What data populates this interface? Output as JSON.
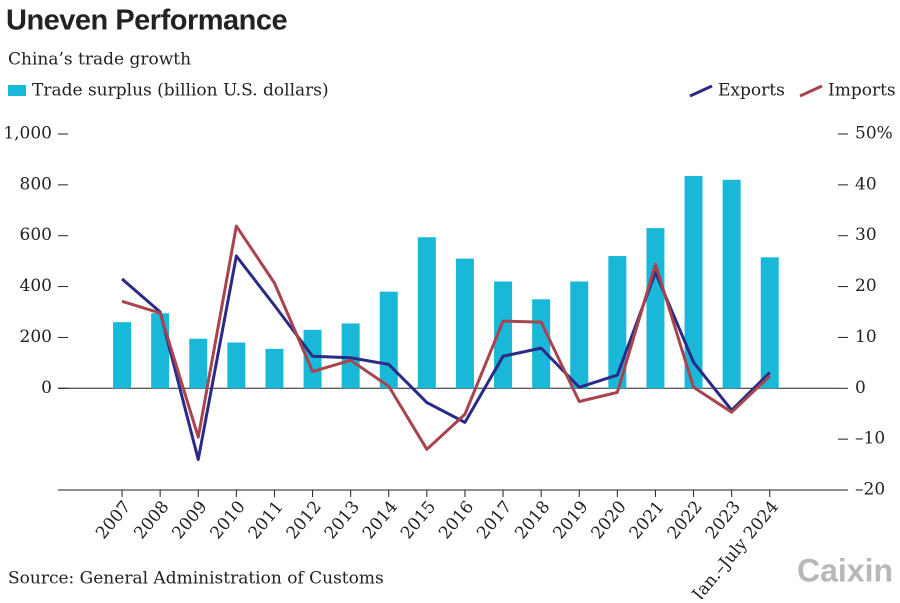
{
  "chart_data": {
    "type": "bar",
    "title": "Uneven Performance",
    "subtitle": "China’s trade growth",
    "source": "Source: General Administration of Customs",
    "brand": "Caixin",
    "categories": [
      "2007",
      "2008",
      "2009",
      "2010",
      "2011",
      "2012",
      "2013",
      "2014",
      "2015",
      "2016",
      "2017",
      "2018",
      "2019",
      "2020",
      "2021",
      "2022",
      "2023",
      "Jan.–July 2024"
    ],
    "series": [
      {
        "name": "Trade surplus (billion U.S. dollars)",
        "type": "bar",
        "axis": "y",
        "color": "#1ab8d8",
        "values": [
          260,
          295,
          195,
          180,
          155,
          230,
          255,
          380,
          594,
          510,
          420,
          350,
          420,
          520,
          630,
          835,
          820,
          515
        ]
      },
      {
        "name": "Exports",
        "type": "line",
        "axis": "y2",
        "color": "#2b2a86",
        "values": [
          21.5,
          15,
          -14,
          26,
          16.3,
          6.3,
          6,
          4.7,
          -2.8,
          -6.7,
          6.3,
          7.9,
          0.2,
          2.6,
          22.8,
          5.1,
          -4.3,
          3.1
        ]
      },
      {
        "name": "Imports",
        "type": "line",
        "axis": "y2",
        "color": "#a8444e",
        "values": [
          17.1,
          14.8,
          -9.6,
          31.9,
          20.7,
          3.3,
          5.5,
          0.4,
          -12,
          -5.1,
          13.2,
          13,
          -2.6,
          -0.8,
          24.4,
          0.2,
          -4.7,
          2.4
        ]
      }
    ],
    "ylim": [
      -400,
      1000
    ],
    "yticks": [
      0,
      200,
      400,
      600,
      800,
      {
        "value": 1000,
        "label": "1,000"
      }
    ],
    "y2lim": [
      -20,
      50
    ],
    "y2ticks": [
      {
        "value": -20,
        "label": "–20"
      },
      {
        "value": -10,
        "label": "–10"
      },
      0,
      10,
      20,
      30,
      40,
      {
        "value": 50,
        "label": "50%"
      }
    ]
  }
}
